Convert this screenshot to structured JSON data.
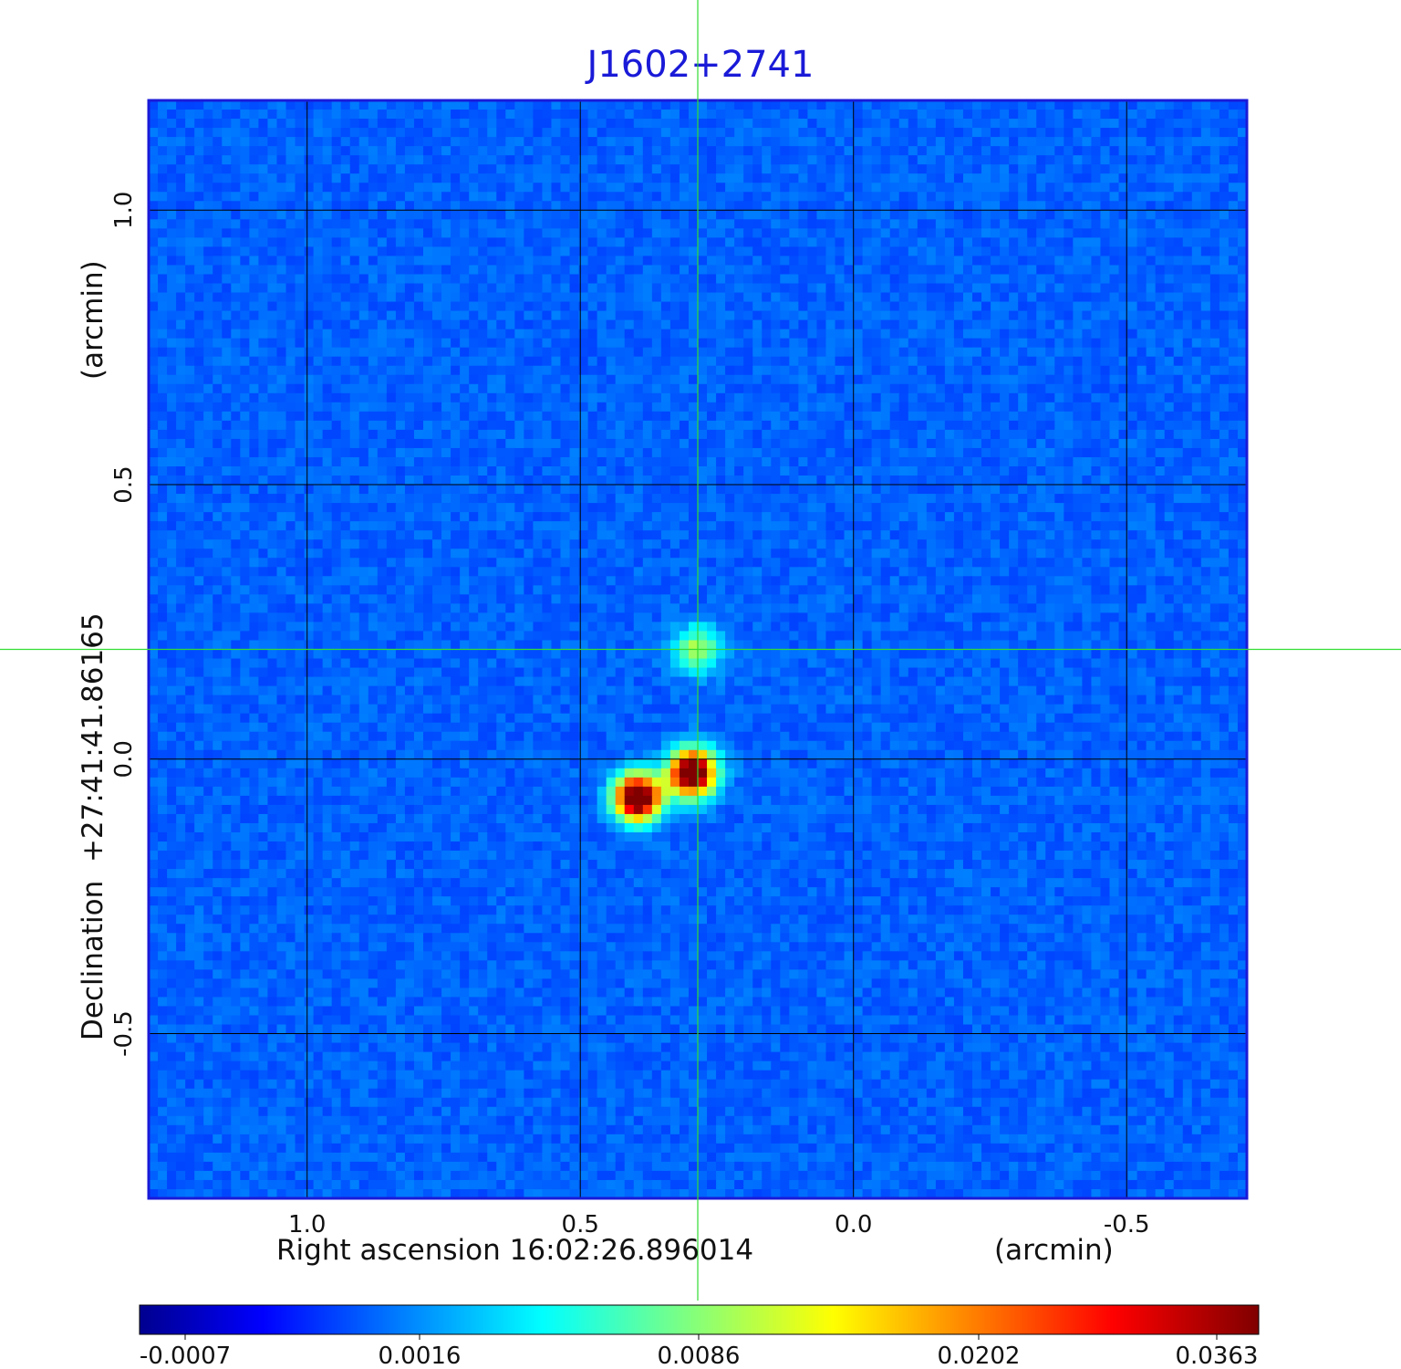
{
  "chart_data": {
    "type": "heatmap",
    "title": "J1602+2741",
    "xlabel": "Right ascension  16:02:26.896014",
    "xunit": "(arcmin)",
    "ylabel": "Declination  +27:41:41.86165",
    "yunit": "(arcmin)",
    "x_axis_reversed": true,
    "xlim": [
      1.29,
      -0.72
    ],
    "ylim": [
      -0.8,
      1.2
    ],
    "x_ticks": [
      1.0,
      0.5,
      0.0,
      -0.5
    ],
    "x_tick_labels": [
      "1.0",
      "0.5",
      "0.0",
      "-0.5"
    ],
    "y_ticks": [
      1.0,
      0.5,
      0.0,
      -0.5
    ],
    "y_tick_labels": [
      "1.0",
      "0.5",
      "0.0",
      "-0.5"
    ],
    "grid": true,
    "crosshair": {
      "x": 0.285,
      "y": 0.2
    },
    "sources": [
      {
        "x": 0.285,
        "y": 0.2,
        "peak": 0.0125
      },
      {
        "x": 0.295,
        "y": -0.025,
        "peak": 0.0363
      },
      {
        "x": 0.395,
        "y": -0.07,
        "peak": 0.0363
      }
    ],
    "colorbar": {
      "colormap": "jet",
      "tick_values": [
        -0.0007,
        0.0016,
        0.0086,
        0.0202,
        0.0363
      ],
      "tick_labels": [
        "-0.0007",
        "0.0016",
        "0.0086",
        "0.0202",
        "0.0363"
      ]
    },
    "colors": {
      "title": "#1a1ad8",
      "frame": "#1a1ad8",
      "crosshair": "#33dd33",
      "grid": "#000000"
    }
  }
}
